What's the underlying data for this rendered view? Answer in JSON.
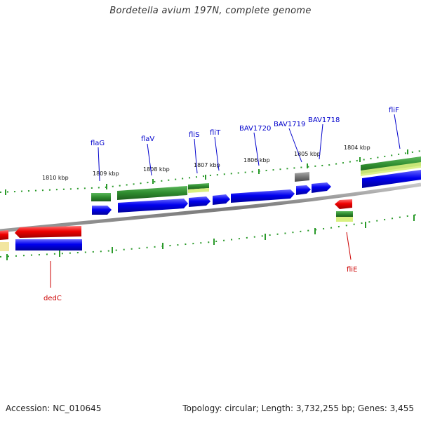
{
  "title": "Bordetella avium 197N, complete genome",
  "footer": {
    "accession": "Accession: NC_010645",
    "summary": "Topology: circular; Length: 3,732,255 bp; Genes: 3,455"
  },
  "colors": {
    "backbone": "#8c8c8c",
    "cds": "#0000ee",
    "forward_gene": "#2e8b2e",
    "reverse_gene": "#ee0000",
    "light_feature": "#d8f080",
    "pale_feature": "#f2e6a0",
    "pseudo_gene": "#777777",
    "label_forward": "#0000cc",
    "label_reverse": "#cc0000",
    "tick": "#2a9a2a"
  },
  "kbp_labels": [
    "1810 kbp",
    "1809 kbp",
    "1808 kbp",
    "1807 kbp",
    "1806 kbp",
    "1805 kbp",
    "1804 kbp"
  ],
  "gene_labels_forward": [
    "flaG",
    "flaV",
    "fliS",
    "fliT",
    "BAV1720",
    "BAV1719",
    "BAV1718",
    "fliF"
  ],
  "gene_labels_reverse": [
    "dedC",
    "fliE"
  ]
}
